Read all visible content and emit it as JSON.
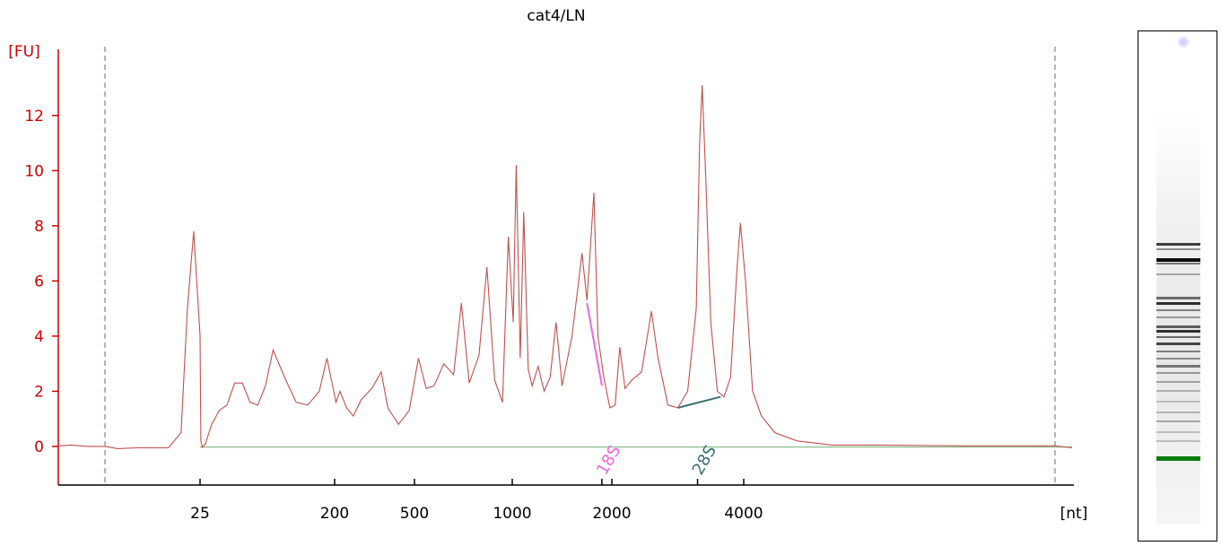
{
  "chart_data": {
    "type": "line",
    "title": "cat4/LN",
    "ylabel": "[FU]",
    "xlabel": "[nt]",
    "x_scale": "nonlinear",
    "x_tick_labels": [
      "25",
      "200",
      "500",
      "1000",
      "2000",
      "4000"
    ],
    "x_tick_values": [
      25,
      200,
      500,
      1000,
      2000,
      4000
    ],
    "y_ticks": [
      0,
      2,
      4,
      6,
      8,
      10,
      12
    ],
    "ylim": [
      -1.4,
      14.4
    ],
    "xlim": [
      4.5,
      8000
    ],
    "grid": false,
    "colors": {
      "trace": "#c0504d",
      "axis": "#cc0000",
      "baseline": "#90c090",
      "s18": "#ee66dd",
      "s28": "#3a7070",
      "dashed": "#4a8a4a"
    },
    "region_lines": [
      {
        "x": 10
      },
      {
        "x": 7500
      }
    ],
    "ribosomal_peaks": [
      {
        "label": "18S",
        "x": 1900,
        "line_from": {
          "x": 1750,
          "y": 5.2
        },
        "line_to": {
          "x": 1900,
          "y": 2.2
        }
      },
      {
        "label": "28S",
        "x": 3300,
        "line_from": {
          "x": 3000,
          "y": 1.4
        },
        "line_to": {
          "x": 3650,
          "y": 1.8
        }
      }
    ],
    "series": [
      {
        "points": [
          [
            4.5,
            0.02
          ],
          [
            6,
            0.05
          ],
          [
            8,
            0.0
          ],
          [
            10,
            0.0
          ],
          [
            12,
            -0.08
          ],
          [
            15,
            -0.05
          ],
          [
            18,
            -0.05
          ],
          [
            20,
            -0.05
          ],
          [
            22,
            0.5
          ],
          [
            23,
            5.0
          ],
          [
            24,
            7.8
          ],
          [
            25,
            4.0
          ],
          [
            26,
            0.2
          ],
          [
            28,
            -0.03
          ],
          [
            32,
            0.1
          ],
          [
            40,
            0.8
          ],
          [
            50,
            1.3
          ],
          [
            60,
            1.5
          ],
          [
            70,
            2.3
          ],
          [
            80,
            2.3
          ],
          [
            90,
            1.6
          ],
          [
            100,
            1.5
          ],
          [
            110,
            2.2
          ],
          [
            120,
            3.5
          ],
          [
            135,
            2.5
          ],
          [
            150,
            1.6
          ],
          [
            165,
            1.5
          ],
          [
            180,
            2.0
          ],
          [
            190,
            3.2
          ],
          [
            205,
            1.6
          ],
          [
            220,
            2.0
          ],
          [
            245,
            1.4
          ],
          [
            270,
            1.1
          ],
          [
            300,
            1.7
          ],
          [
            340,
            2.1
          ],
          [
            375,
            2.7
          ],
          [
            400,
            1.4
          ],
          [
            440,
            0.8
          ],
          [
            480,
            1.3
          ],
          [
            520,
            3.2
          ],
          [
            560,
            2.1
          ],
          [
            600,
            2.2
          ],
          [
            650,
            3.0
          ],
          [
            700,
            2.6
          ],
          [
            740,
            5.2
          ],
          [
            780,
            2.3
          ],
          [
            830,
            3.3
          ],
          [
            870,
            6.5
          ],
          [
            910,
            2.4
          ],
          [
            950,
            1.6
          ],
          [
            980,
            7.6
          ],
          [
            1010,
            4.5
          ],
          [
            1040,
            10.2
          ],
          [
            1080,
            3.2
          ],
          [
            1115,
            8.5
          ],
          [
            1160,
            2.8
          ],
          [
            1200,
            2.2
          ],
          [
            1260,
            2.9
          ],
          [
            1320,
            2.0
          ],
          [
            1380,
            2.5
          ],
          [
            1440,
            4.5
          ],
          [
            1500,
            2.2
          ],
          [
            1600,
            4.0
          ],
          [
            1700,
            7.0
          ],
          [
            1750,
            5.3
          ],
          [
            1820,
            9.2
          ],
          [
            1860,
            4.0
          ],
          [
            1920,
            2.5
          ],
          [
            1980,
            1.4
          ],
          [
            2050,
            1.5
          ],
          [
            2120,
            3.6
          ],
          [
            2200,
            2.1
          ],
          [
            2300,
            2.4
          ],
          [
            2450,
            2.7
          ],
          [
            2600,
            4.9
          ],
          [
            2700,
            3.2
          ],
          [
            2850,
            1.5
          ],
          [
            3000,
            1.4
          ],
          [
            3150,
            2.0
          ],
          [
            3280,
            5.0
          ],
          [
            3330,
            11.0
          ],
          [
            3370,
            13.1
          ],
          [
            3420,
            10.0
          ],
          [
            3500,
            4.5
          ],
          [
            3600,
            2.0
          ],
          [
            3700,
            1.8
          ],
          [
            3800,
            2.5
          ],
          [
            3900,
            6.5
          ],
          [
            3950,
            8.1
          ],
          [
            4020,
            6.0
          ],
          [
            4100,
            2.0
          ],
          [
            4200,
            1.1
          ],
          [
            4350,
            0.5
          ],
          [
            4600,
            0.2
          ],
          [
            5000,
            0.05
          ],
          [
            5500,
            0.05
          ],
          [
            6500,
            0.02
          ],
          [
            7500,
            0.02
          ],
          [
            8000,
            -0.05
          ]
        ]
      }
    ]
  }
}
